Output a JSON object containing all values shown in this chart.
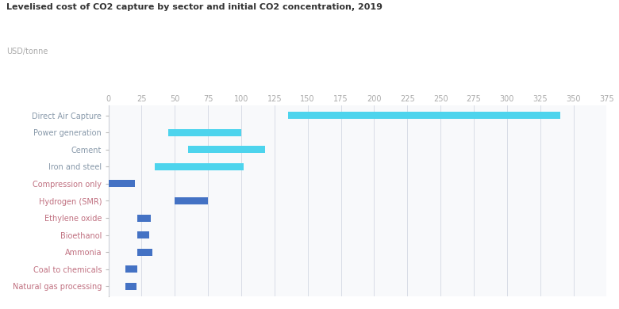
{
  "title": "Levelised cost of CO2 capture by sector and initial CO2 concentration, 2019",
  "ylabel_unit": "USD/tonne",
  "background_color": "#ffffff",
  "plot_bg_color": "#f8f9fb",
  "grid_color": "#d4d8e2",
  "categories": [
    "Direct Air Capture",
    "Power generation",
    "Cement",
    "Iron and steel",
    "Compression only",
    "Hydrogen (SMR)",
    "Ethylene oxide",
    "Bioethanol",
    "Ammonia",
    "Coal to chemicals",
    "Natural gas processing"
  ],
  "bar_starts": [
    135,
    45,
    60,
    35,
    0,
    50,
    22,
    22,
    22,
    13,
    13
  ],
  "bar_ends": [
    340,
    100,
    118,
    102,
    20,
    75,
    32,
    31,
    33,
    22,
    21
  ],
  "bar_colors": [
    "#4dd4ed",
    "#4dd4ed",
    "#4dd4ed",
    "#4dd4ed",
    "#4472c4",
    "#4472c4",
    "#4472c4",
    "#4472c4",
    "#4472c4",
    "#4472c4",
    "#4472c4"
  ],
  "label_colors": [
    "#8899aa",
    "#8899aa",
    "#8899aa",
    "#8899aa",
    "#c07080",
    "#c07080",
    "#c07080",
    "#c07080",
    "#c07080",
    "#c07080",
    "#c07080"
  ],
  "xlim": [
    0,
    375
  ],
  "xticks": [
    0,
    25,
    50,
    75,
    100,
    125,
    150,
    175,
    200,
    225,
    250,
    275,
    300,
    325,
    350,
    375
  ],
  "bar_height": 0.42,
  "title_fontsize": 8.0,
  "tick_fontsize": 7.0,
  "label_fontsize": 7.0,
  "unit_fontsize": 7.0
}
